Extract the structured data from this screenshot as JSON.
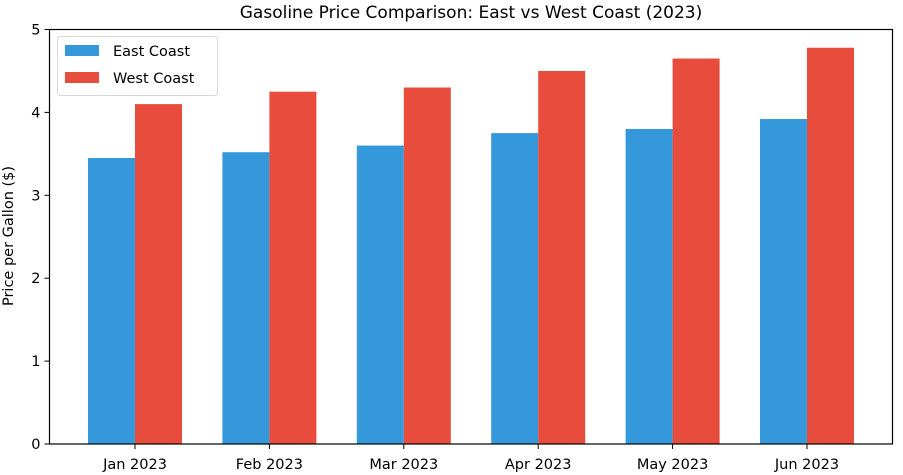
{
  "chart_data": {
    "type": "bar",
    "title": "Gasoline Price Comparison: East vs West Coast (2023)",
    "xlabel": "",
    "ylabel": "Price per Gallon ($)",
    "categories": [
      "Jan 2023",
      "Feb 2023",
      "Mar 2023",
      "Apr 2023",
      "May 2023",
      "Jun 2023"
    ],
    "series": [
      {
        "name": "East Coast",
        "color": "#3498db",
        "values": [
          3.45,
          3.52,
          3.6,
          3.75,
          3.8,
          3.92
        ]
      },
      {
        "name": "West Coast",
        "color": "#e74c3c",
        "values": [
          4.1,
          4.25,
          4.3,
          4.5,
          4.65,
          4.78
        ]
      }
    ],
    "ylim": [
      0,
      5
    ],
    "yticks": [
      0,
      1,
      2,
      3,
      4,
      5
    ],
    "grid": false,
    "legend_position": "upper left"
  }
}
